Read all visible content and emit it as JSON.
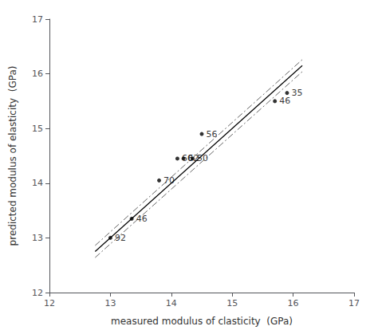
{
  "chart_data": {
    "type": "scatter",
    "xlabel": "measured modulus of clasticity  (GPa)",
    "ylabel": "predicted modulus of elasticity  (GPa)",
    "xlim": [
      12,
      17
    ],
    "ylim": [
      12,
      17
    ],
    "xticks": [
      12,
      13,
      14,
      15,
      16,
      17
    ],
    "yticks": [
      12,
      13,
      14,
      15,
      16,
      17
    ],
    "grid": false,
    "series": [
      {
        "type": "line",
        "color": "#000000",
        "line_style": "solid",
        "x": [
          12.75,
          16.15
        ],
        "values": [
          12.75,
          16.15
        ]
      },
      {
        "type": "line",
        "color": "#666666",
        "line_style": "dashdot",
        "x": [
          12.75,
          16.15
        ],
        "values": [
          12.86,
          16.26
        ]
      },
      {
        "type": "line",
        "color": "#666666",
        "line_style": "dashdot",
        "x": [
          12.75,
          16.15
        ],
        "values": [
          12.64,
          16.04
        ]
      },
      {
        "type": "scatter",
        "color": "#000000",
        "marker": "circle",
        "x": [
          13.0,
          13.35,
          13.8,
          14.1,
          14.2,
          14.35,
          14.5,
          15.7,
          15.9
        ],
        "values": [
          13.0,
          13.35,
          14.05,
          14.45,
          14.45,
          14.45,
          14.9,
          15.5,
          15.65
        ],
        "labels": [
          "92",
          "46",
          "70",
          "60",
          "62",
          "50",
          "56",
          "46",
          "35"
        ]
      }
    ]
  }
}
